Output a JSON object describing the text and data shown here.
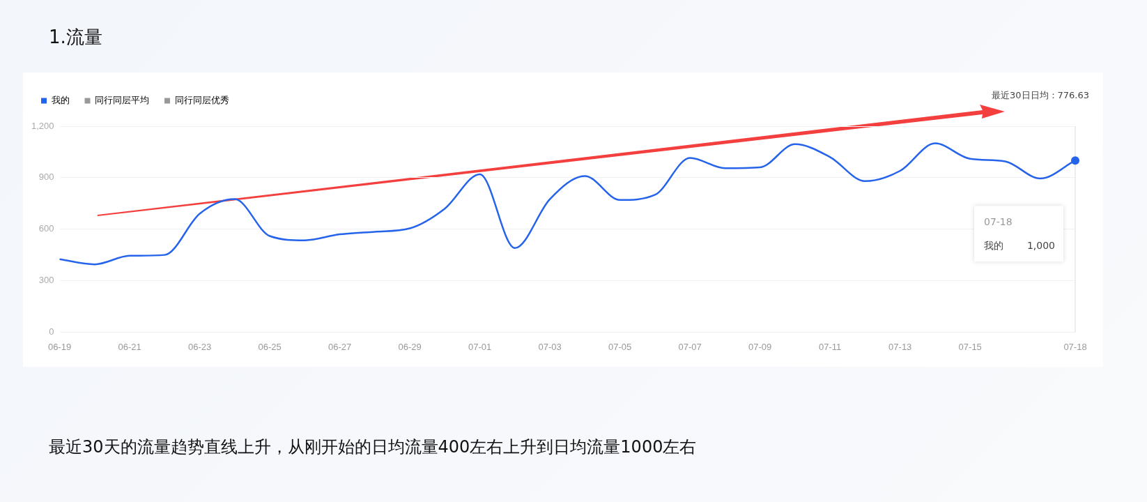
{
  "chart_data": {
    "type": "line",
    "title": "1.流量",
    "categories": [
      "06-19",
      null,
      "06-21",
      null,
      "06-23",
      null,
      "06-25",
      null,
      "06-27",
      null,
      "06-29",
      null,
      "07-01",
      null,
      "07-03",
      null,
      "07-05",
      null,
      "07-07",
      null,
      "07-09",
      null,
      "07-11",
      null,
      "07-13",
      null,
      "07-15",
      null,
      null,
      "07-18"
    ],
    "series": [
      {
        "name": "我的",
        "color": "#2563eb",
        "values": [
          425,
          395,
          445,
          450,
          690,
          775,
          560,
          535,
          570,
          585,
          605,
          720,
          920,
          490,
          775,
          910,
          770,
          800,
          1015,
          955,
          960,
          1095,
          1020,
          880,
          940,
          1100,
          1010,
          995,
          895,
          1000
        ]
      },
      {
        "name": "同行同层平均",
        "color": "#999999",
        "values": [
          null,
          null,
          null,
          null,
          null,
          null,
          null,
          null,
          null,
          null,
          null,
          null,
          null,
          null,
          null,
          null,
          null,
          null,
          null,
          null,
          null,
          null,
          null,
          null,
          null,
          null,
          null,
          null,
          null,
          null
        ]
      },
      {
        "name": "同行同层优秀",
        "color": "#999999",
        "values": [
          null,
          null,
          null,
          null,
          null,
          null,
          null,
          null,
          null,
          null,
          null,
          null,
          null,
          null,
          null,
          null,
          null,
          null,
          null,
          null,
          null,
          null,
          null,
          null,
          null,
          null,
          null,
          null,
          null,
          null
        ]
      }
    ],
    "ylim": [
      0,
      1200
    ],
    "yticks": [
      0,
      300,
      600,
      900,
      {
        "value": 1200,
        "label": "1,200"
      }
    ],
    "grid": "y",
    "legend": "top left",
    "marker": "none",
    "annotations": [
      "最近30日日均：776.63",
      "07-18",
      "我的",
      "1,000",
      "最近30天的流量趋势直线上升，从刚开始的日均流量400左右上升到日均流量1000左右"
    ]
  }
}
